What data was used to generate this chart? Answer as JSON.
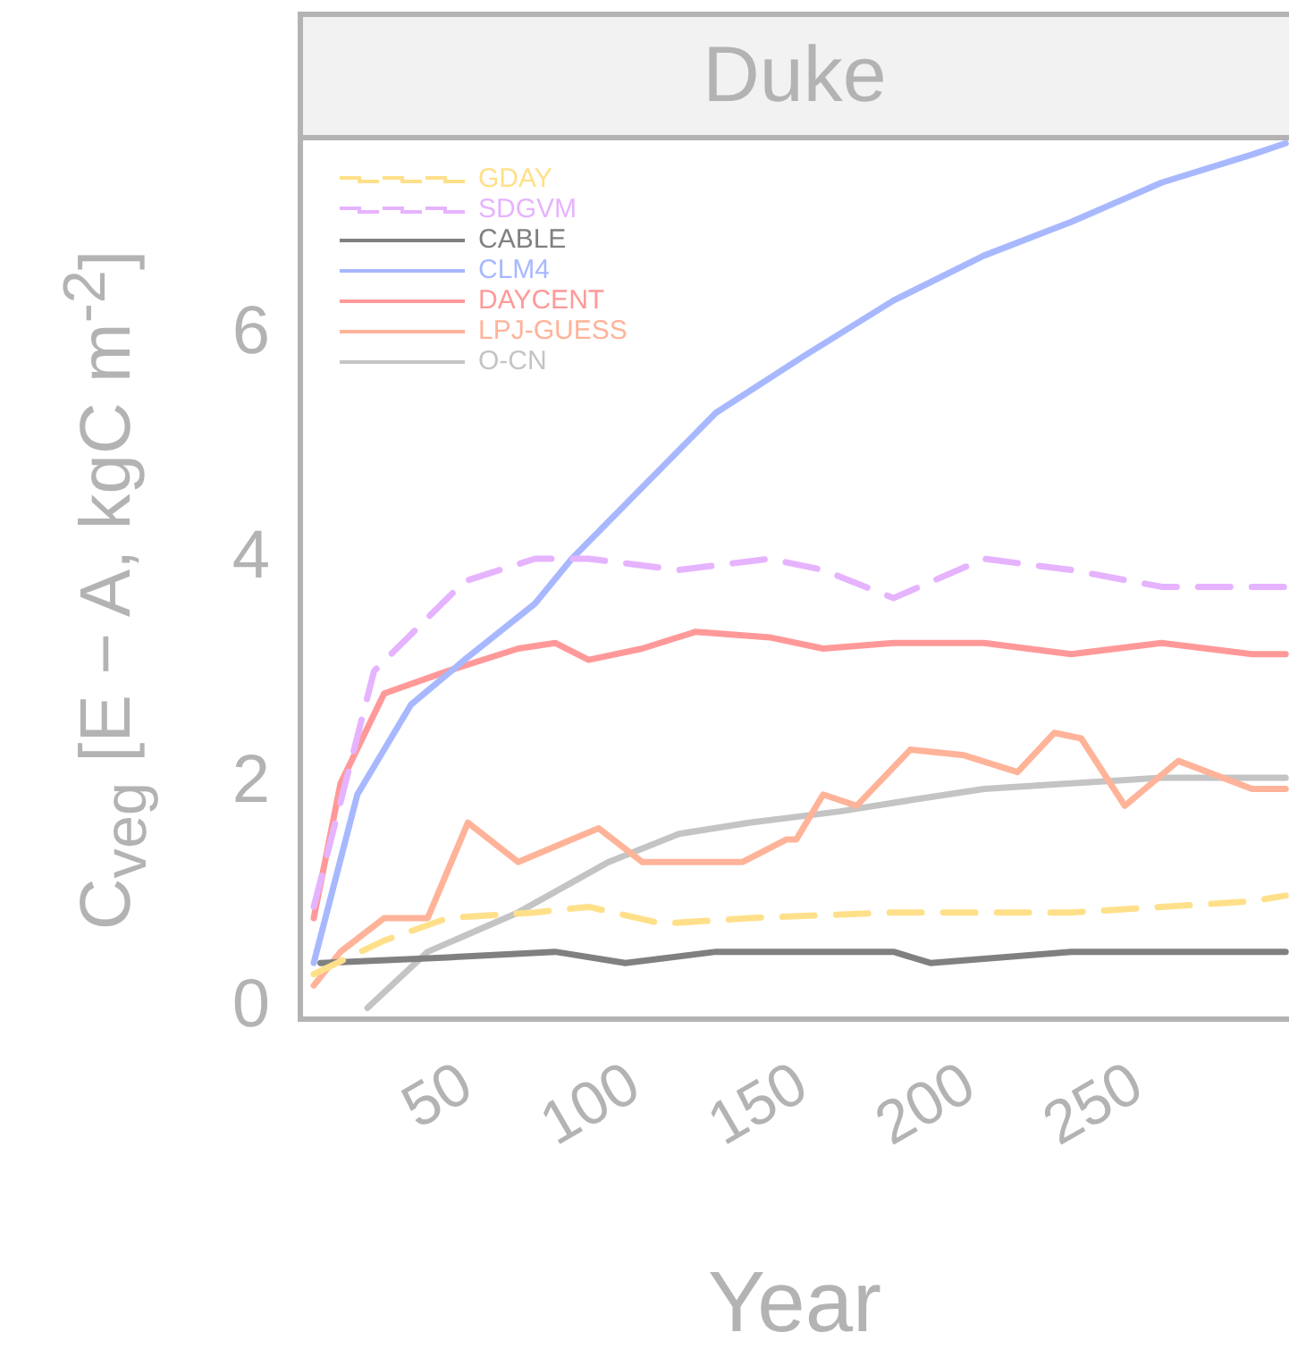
{
  "chart_data": {
    "type": "line",
    "title": "Duke",
    "xlabel": "Year",
    "ylabel": "C$_{veg}$ [E − A, kgC m$^{-2}$]",
    "xlim": [
      0,
      295
    ],
    "xticks": [
      50,
      100,
      150,
      200,
      250
    ],
    "ylim": [
      -0.1,
      7.75
    ],
    "yticks": [
      0,
      2,
      4,
      6
    ],
    "grid": false,
    "legend": "top left",
    "marker": "none",
    "series": [
      {
        "name": "GDAY",
        "color": "#ffe08a",
        "line_style": "dashed",
        "x": [
          4,
          25,
          44,
          70,
          86,
          108,
          134,
          177,
          230,
          284,
          294
        ],
        "values": [
          0.3,
          0.6,
          0.8,
          0.85,
          0.9,
          0.75,
          0.8,
          0.85,
          0.85,
          0.95,
          1.0
        ]
      },
      {
        "name": "SDGVM",
        "color": "#e6b3ff",
        "line_style": "dashed",
        "x": [
          4,
          22,
          49,
          70,
          86,
          113,
          140,
          156,
          177,
          204,
          230,
          257,
          294
        ],
        "values": [
          0.9,
          3.0,
          3.8,
          4.0,
          4.0,
          3.9,
          4.0,
          3.9,
          3.65,
          4.0,
          3.9,
          3.75,
          3.75
        ]
      },
      {
        "name": "CABLE",
        "color": "#808080",
        "line_style": "solid",
        "x": [
          6,
          44,
          76,
          97,
          124,
          177,
          188,
          230,
          294
        ],
        "values": [
          0.4,
          0.45,
          0.5,
          0.4,
          0.5,
          0.5,
          0.4,
          0.5,
          0.5
        ]
      },
      {
        "name": "CLM4",
        "color": "#a8b8ff",
        "line_style": "solid",
        "x": [
          4,
          17,
          33,
          49,
          70,
          81,
          124,
          150,
          177,
          204,
          230,
          257,
          284,
          294
        ],
        "values": [
          0.4,
          1.9,
          2.7,
          3.1,
          3.6,
          4.0,
          5.3,
          5.8,
          6.3,
          6.7,
          7.0,
          7.35,
          7.6,
          7.7
        ]
      },
      {
        "name": "DAYCENT",
        "color": "#ff9999",
        "line_style": "solid",
        "x": [
          4,
          12,
          25,
          44,
          65,
          76,
          86,
          102,
          118,
          140,
          156,
          177,
          204,
          230,
          257,
          284,
          294
        ],
        "values": [
          0.8,
          2.0,
          2.8,
          3.0,
          3.2,
          3.25,
          3.1,
          3.2,
          3.35,
          3.3,
          3.2,
          3.25,
          3.25,
          3.15,
          3.25,
          3.15,
          3.15
        ]
      },
      {
        "name": "LPJ-GUESS",
        "color": "#ffb399",
        "line_style": "solid",
        "x": [
          4,
          12,
          25,
          38,
          50,
          65,
          81,
          89,
          102,
          118,
          132,
          145,
          148,
          156,
          166,
          182,
          198,
          214,
          225,
          233,
          246,
          262,
          284,
          294
        ],
        "values": [
          0.2,
          0.5,
          0.8,
          0.8,
          1.65,
          1.3,
          1.5,
          1.6,
          1.3,
          1.3,
          1.3,
          1.5,
          1.5,
          1.9,
          1.8,
          2.3,
          2.25,
          2.1,
          2.45,
          2.4,
          1.8,
          2.2,
          1.95,
          1.95
        ]
      },
      {
        "name": "O-CN",
        "color": "#c4c4c4",
        "line_style": "solid",
        "x": [
          20,
          38,
          65,
          92,
          113,
          134,
          161,
          182,
          204,
          230,
          257,
          294
        ],
        "values": [
          0,
          0.5,
          0.85,
          1.3,
          1.55,
          1.65,
          1.75,
          1.85,
          1.95,
          2.0,
          2.05,
          2.05
        ]
      }
    ]
  }
}
